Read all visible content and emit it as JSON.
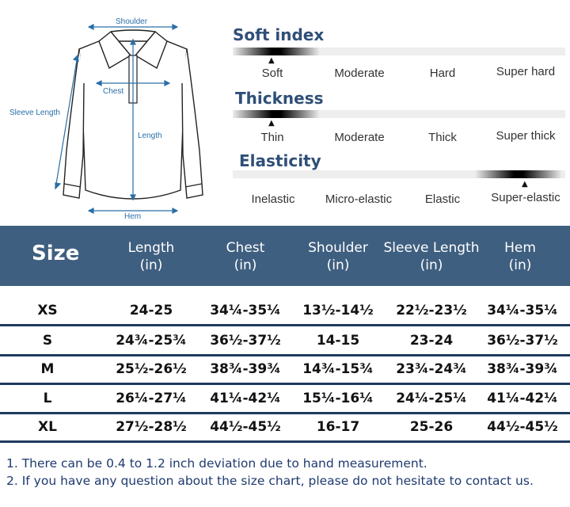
{
  "diagram": {
    "labels": {
      "shoulder": "Shoulder",
      "chest": "Chest",
      "sleeve_length": "Sleeve Length",
      "length": "Length",
      "hem": "Hem"
    }
  },
  "scales": [
    {
      "title": "Soft index",
      "options": [
        "Soft",
        "Moderate",
        "Hard",
        "Super hard"
      ],
      "selected_index": 0
    },
    {
      "title": "Thickness",
      "options": [
        "Thin",
        "Moderate",
        "Thick",
        "Super thick"
      ],
      "selected_index": 0
    },
    {
      "title": "Elasticity",
      "options": [
        "Inelastic",
        "Micro-elastic",
        "Elastic",
        "Super-elastic"
      ],
      "selected_index": 3
    }
  ],
  "table": {
    "size_header": "Size",
    "columns": [
      {
        "name": "Length",
        "unit": "(in)"
      },
      {
        "name": "Chest",
        "unit": "(in)"
      },
      {
        "name": "Shoulder",
        "unit": "(in)"
      },
      {
        "name": "Sleeve Length",
        "unit": "(in)"
      },
      {
        "name": "Hem",
        "unit": "(in)"
      }
    ],
    "rows": [
      {
        "size": "XS",
        "values": [
          "24-25",
          "34¼-35¼",
          "13½-14½",
          "22½-23½",
          "34¼-35¼"
        ]
      },
      {
        "size": "S",
        "values": [
          "24¾-25¾",
          "36½-37½",
          "14-15",
          "23-24",
          "36½-37½"
        ]
      },
      {
        "size": "M",
        "values": [
          "25½-26½",
          "38¾-39¾",
          "14¾-15¾",
          "23¾-24¾",
          "38¾-39¾"
        ]
      },
      {
        "size": "L",
        "values": [
          "26¼-27¼",
          "41¼-42¼",
          "15¼-16¼",
          "24¼-25¼",
          "41¼-42¼"
        ]
      },
      {
        "size": "XL",
        "values": [
          "27½-28½",
          "44½-45½",
          "16-17",
          "25-26",
          "44½-45½"
        ]
      }
    ]
  },
  "notes": [
    "1. There can be 0.4 to 1.2 inch deviation due to hand measurement.",
    "2. If you have any question about the size chart, please do not hesitate to contact us."
  ],
  "colors": {
    "header_bg": "#3f5f80",
    "title_blue": "#2f4f78",
    "measure_blue": "#2a6fa8",
    "note_blue": "#1f3a6f"
  }
}
